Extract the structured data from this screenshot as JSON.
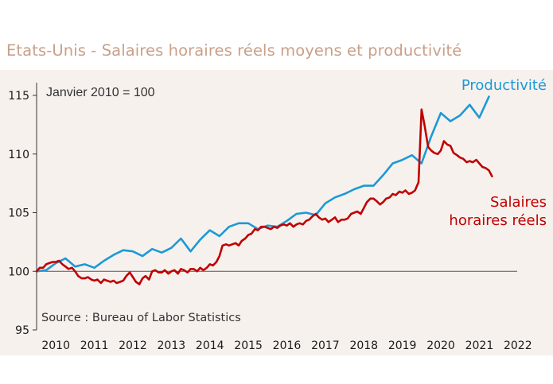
{
  "title": "Etats-Unis - Salaires horaires réels moyens et productivité",
  "chart_data": {
    "type": "line",
    "title": "Etats-Unis - Salaires horaires réels moyens et productivité",
    "note": "Janvier 2010 = 100",
    "source": "Source :  Bureau of Labor Statistics",
    "xlabel": "",
    "ylabel": "",
    "ylim": [
      95,
      115
    ],
    "yticks": [
      "95",
      "100",
      "105",
      "110",
      "115"
    ],
    "xticks": [
      "2010",
      "2011",
      "2012",
      "2013",
      "2014",
      "2015",
      "2016",
      "2017",
      "2018",
      "2019",
      "2020",
      "2021",
      "2022"
    ],
    "xlim": [
      2010.0,
      2023.0
    ],
    "series": [
      {
        "name": "Productivité",
        "color": "#1b9ad6",
        "points": [
          [
            2010.0,
            100.0
          ],
          [
            2010.25,
            100.1
          ],
          [
            2010.5,
            100.7
          ],
          [
            2010.75,
            101.1
          ],
          [
            2011.0,
            100.4
          ],
          [
            2011.25,
            100.6
          ],
          [
            2011.5,
            100.3
          ],
          [
            2011.75,
            100.9
          ],
          [
            2012.0,
            101.4
          ],
          [
            2012.25,
            101.8
          ],
          [
            2012.5,
            101.7
          ],
          [
            2012.75,
            101.3
          ],
          [
            2013.0,
            101.9
          ],
          [
            2013.25,
            101.6
          ],
          [
            2013.5,
            102.0
          ],
          [
            2013.75,
            102.8
          ],
          [
            2014.0,
            101.7
          ],
          [
            2014.25,
            102.7
          ],
          [
            2014.5,
            103.5
          ],
          [
            2014.75,
            103.0
          ],
          [
            2015.0,
            103.8
          ],
          [
            2015.25,
            104.1
          ],
          [
            2015.5,
            104.1
          ],
          [
            2015.75,
            103.6
          ],
          [
            2016.0,
            103.9
          ],
          [
            2016.25,
            103.8
          ],
          [
            2016.5,
            104.3
          ],
          [
            2016.75,
            104.9
          ],
          [
            2017.0,
            105.0
          ],
          [
            2017.25,
            104.8
          ],
          [
            2017.5,
            105.8
          ],
          [
            2017.75,
            106.3
          ],
          [
            2018.0,
            106.6
          ],
          [
            2018.25,
            107.0
          ],
          [
            2018.5,
            107.3
          ],
          [
            2018.75,
            107.3
          ],
          [
            2019.0,
            108.2
          ],
          [
            2019.25,
            109.2
          ],
          [
            2019.5,
            109.5
          ],
          [
            2019.75,
            109.9
          ],
          [
            2020.0,
            109.2
          ],
          [
            2020.25,
            111.5
          ],
          [
            2020.5,
            113.5
          ],
          [
            2020.75,
            112.8
          ],
          [
            2021.0,
            113.3
          ],
          [
            2021.25,
            114.2
          ],
          [
            2021.5,
            113.1
          ],
          [
            2021.75,
            114.9
          ]
        ]
      },
      {
        "name": "Salaires horaires réels",
        "label_lines": [
          "Salaires",
          "horaires réels"
        ],
        "color": "#c00000",
        "points": [
          [
            2010.0,
            100.0
          ],
          [
            2010.08,
            100.3
          ],
          [
            2010.17,
            100.3
          ],
          [
            2010.25,
            100.6
          ],
          [
            2010.33,
            100.7
          ],
          [
            2010.42,
            100.8
          ],
          [
            2010.5,
            100.8
          ],
          [
            2010.58,
            100.9
          ],
          [
            2010.67,
            100.6
          ],
          [
            2010.75,
            100.4
          ],
          [
            2010.83,
            100.2
          ],
          [
            2010.92,
            100.3
          ],
          [
            2011.0,
            100.0
          ],
          [
            2011.08,
            99.6
          ],
          [
            2011.17,
            99.4
          ],
          [
            2011.25,
            99.4
          ],
          [
            2011.33,
            99.5
          ],
          [
            2011.42,
            99.3
          ],
          [
            2011.5,
            99.2
          ],
          [
            2011.58,
            99.3
          ],
          [
            2011.67,
            99.0
          ],
          [
            2011.75,
            99.3
          ],
          [
            2011.83,
            99.2
          ],
          [
            2011.92,
            99.1
          ],
          [
            2012.0,
            99.2
          ],
          [
            2012.08,
            99.0
          ],
          [
            2012.17,
            99.1
          ],
          [
            2012.25,
            99.2
          ],
          [
            2012.33,
            99.6
          ],
          [
            2012.42,
            99.9
          ],
          [
            2012.5,
            99.5
          ],
          [
            2012.58,
            99.1
          ],
          [
            2012.67,
            98.9
          ],
          [
            2012.75,
            99.4
          ],
          [
            2012.83,
            99.6
          ],
          [
            2012.92,
            99.3
          ],
          [
            2013.0,
            100.0
          ],
          [
            2013.08,
            100.1
          ],
          [
            2013.17,
            99.9
          ],
          [
            2013.25,
            99.9
          ],
          [
            2013.33,
            100.1
          ],
          [
            2013.42,
            99.8
          ],
          [
            2013.5,
            100.0
          ],
          [
            2013.58,
            100.1
          ],
          [
            2013.67,
            99.8
          ],
          [
            2013.75,
            100.2
          ],
          [
            2013.83,
            100.1
          ],
          [
            2013.92,
            99.9
          ],
          [
            2014.0,
            100.2
          ],
          [
            2014.08,
            100.2
          ],
          [
            2014.17,
            100.0
          ],
          [
            2014.25,
            100.3
          ],
          [
            2014.33,
            100.1
          ],
          [
            2014.42,
            100.3
          ],
          [
            2014.5,
            100.6
          ],
          [
            2014.58,
            100.5
          ],
          [
            2014.67,
            100.8
          ],
          [
            2014.75,
            101.3
          ],
          [
            2014.83,
            102.2
          ],
          [
            2014.92,
            102.3
          ],
          [
            2015.0,
            102.2
          ],
          [
            2015.08,
            102.3
          ],
          [
            2015.17,
            102.4
          ],
          [
            2015.25,
            102.2
          ],
          [
            2015.33,
            102.6
          ],
          [
            2015.42,
            102.8
          ],
          [
            2015.5,
            103.1
          ],
          [
            2015.58,
            103.2
          ],
          [
            2015.67,
            103.6
          ],
          [
            2015.75,
            103.5
          ],
          [
            2015.83,
            103.8
          ],
          [
            2015.92,
            103.8
          ],
          [
            2016.0,
            103.7
          ],
          [
            2016.08,
            103.6
          ],
          [
            2016.17,
            103.8
          ],
          [
            2016.25,
            103.7
          ],
          [
            2016.33,
            103.9
          ],
          [
            2016.42,
            104.0
          ],
          [
            2016.5,
            103.9
          ],
          [
            2016.58,
            104.1
          ],
          [
            2016.67,
            103.8
          ],
          [
            2016.75,
            104.0
          ],
          [
            2016.83,
            104.1
          ],
          [
            2016.92,
            104.0
          ],
          [
            2017.0,
            104.3
          ],
          [
            2017.08,
            104.4
          ],
          [
            2017.17,
            104.7
          ],
          [
            2017.25,
            104.9
          ],
          [
            2017.33,
            104.6
          ],
          [
            2017.42,
            104.4
          ],
          [
            2017.5,
            104.5
          ],
          [
            2017.58,
            104.2
          ],
          [
            2017.67,
            104.4
          ],
          [
            2017.75,
            104.6
          ],
          [
            2017.83,
            104.2
          ],
          [
            2017.92,
            104.4
          ],
          [
            2018.0,
            104.4
          ],
          [
            2018.08,
            104.5
          ],
          [
            2018.17,
            104.9
          ],
          [
            2018.25,
            105.0
          ],
          [
            2018.33,
            105.1
          ],
          [
            2018.42,
            104.9
          ],
          [
            2018.5,
            105.4
          ],
          [
            2018.58,
            105.9
          ],
          [
            2018.67,
            106.2
          ],
          [
            2018.75,
            106.2
          ],
          [
            2018.83,
            106.0
          ],
          [
            2018.92,
            105.7
          ],
          [
            2019.0,
            105.9
          ],
          [
            2019.08,
            106.2
          ],
          [
            2019.17,
            106.3
          ],
          [
            2019.25,
            106.6
          ],
          [
            2019.33,
            106.5
          ],
          [
            2019.42,
            106.8
          ],
          [
            2019.5,
            106.7
          ],
          [
            2019.58,
            106.9
          ],
          [
            2019.67,
            106.6
          ],
          [
            2019.75,
            106.7
          ],
          [
            2019.83,
            106.9
          ],
          [
            2019.92,
            107.6
          ],
          [
            2020.0,
            113.8
          ],
          [
            2020.08,
            112.4
          ],
          [
            2020.17,
            110.6
          ],
          [
            2020.25,
            110.3
          ],
          [
            2020.33,
            110.1
          ],
          [
            2020.42,
            110.0
          ],
          [
            2020.5,
            110.3
          ],
          [
            2020.58,
            111.1
          ],
          [
            2020.67,
            110.8
          ],
          [
            2020.75,
            110.7
          ],
          [
            2020.83,
            110.1
          ],
          [
            2020.92,
            109.9
          ],
          [
            2021.0,
            109.7
          ],
          [
            2021.08,
            109.6
          ],
          [
            2021.17,
            109.3
          ],
          [
            2021.25,
            109.4
          ],
          [
            2021.33,
            109.3
          ],
          [
            2021.42,
            109.5
          ],
          [
            2021.5,
            109.2
          ],
          [
            2021.58,
            108.9
          ],
          [
            2021.67,
            108.8
          ],
          [
            2021.75,
            108.6
          ],
          [
            2021.83,
            108.1
          ]
        ]
      }
    ]
  }
}
